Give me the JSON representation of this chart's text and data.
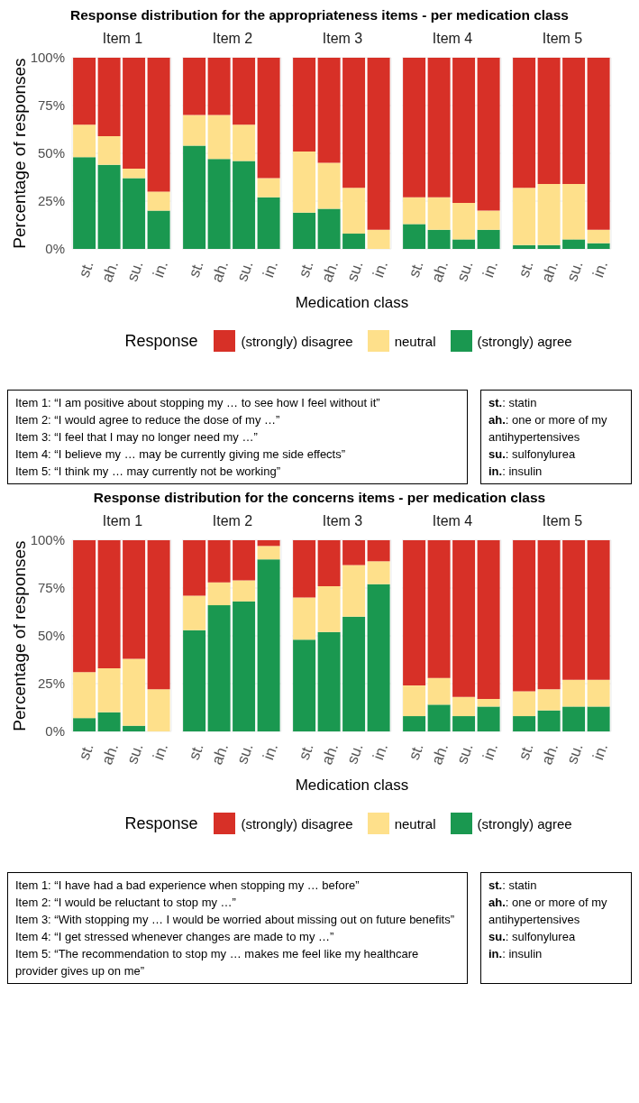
{
  "chart_data": [
    {
      "type": "bar",
      "stacked": true,
      "title": "Response distribution for the appropriateness items - per medication class",
      "subtitle": "Item 1",
      "ylabel": "Percentage of responses",
      "legend": "bottom",
      "legend_title": "Response",
      "categories": [
        "st.",
        "ah.",
        "su.",
        "in."
      ],
      "ylim": [
        0,
        100
      ],
      "yticks": [
        {
          "value": 0,
          "label": "0%"
        },
        {
          "value": 25,
          "label": "25%"
        },
        {
          "value": 50,
          "label": "50%"
        },
        {
          "value": 75,
          "label": "75%"
        },
        {
          "value": 100,
          "label": "100%"
        }
      ],
      "grid": true,
      "series": [
        {
          "name": "(strongly) agree",
          "color": "#1a9850",
          "values": [
            48,
            44,
            37,
            20
          ]
        },
        {
          "name": "neutral",
          "color": "#fee08b",
          "values": [
            17,
            15,
            5,
            10
          ]
        },
        {
          "name": "(strongly) disagree",
          "color": "#d73027",
          "values": [
            35,
            41,
            58,
            70
          ]
        }
      ],
      "annotations": [
        "Item 1: “I am positive about stopping my … to see how I feel without it”",
        "Item 2: “I would agree to reduce the dose of my …”",
        "Item 3: “I feel that I may no longer need my …”",
        "Item 4: “I believe my … may be currently giving me side effects”",
        "Item 5: “I think my … may currently not be working”"
      ]
    },
    {
      "type": "bar",
      "stacked": true,
      "subtitle": "Item 2",
      "categories": [
        "st.",
        "ah.",
        "su.",
        "in."
      ],
      "ylim": [
        0,
        100
      ],
      "yticks": [
        0,
        25,
        50,
        75,
        100
      ],
      "grid": true,
      "tick_labels": "x",
      "series": [
        {
          "color": "#1a9850",
          "values": [
            54,
            47,
            46,
            27
          ]
        },
        {
          "color": "#fee08b",
          "values": [
            16,
            23,
            19,
            10
          ]
        },
        {
          "color": "#d73027",
          "values": [
            30,
            30,
            35,
            63
          ]
        }
      ]
    },
    {
      "type": "bar",
      "stacked": true,
      "subtitle": "Item 3",
      "xlabel": "Medication class",
      "categories": [
        "st.",
        "ah.",
        "su.",
        "in."
      ],
      "ylim": [
        0,
        100
      ],
      "yticks": [
        0,
        25,
        50,
        75,
        100
      ],
      "grid": true,
      "tick_labels": "x",
      "series": [
        {
          "color": "#1a9850",
          "values": [
            19,
            21,
            8,
            0
          ]
        },
        {
          "color": "#fee08b",
          "values": [
            32,
            24,
            24,
            10
          ]
        },
        {
          "color": "#d73027",
          "values": [
            49,
            55,
            68,
            90
          ]
        }
      ]
    },
    {
      "type": "bar",
      "stacked": true,
      "subtitle": "Item 4",
      "categories": [
        "st.",
        "ah.",
        "su.",
        "in."
      ],
      "ylim": [
        0,
        100
      ],
      "yticks": [
        0,
        25,
        50,
        75,
        100
      ],
      "grid": true,
      "tick_labels": "x",
      "series": [
        {
          "color": "#1a9850",
          "values": [
            13,
            10,
            5,
            10
          ]
        },
        {
          "color": "#fee08b",
          "values": [
            14,
            17,
            19,
            10
          ]
        },
        {
          "color": "#d73027",
          "values": [
            73,
            73,
            76,
            80
          ]
        }
      ]
    },
    {
      "type": "bar",
      "stacked": true,
      "subtitle": "Item 5",
      "categories": [
        "st.",
        "ah.",
        "su.",
        "in."
      ],
      "ylim": [
        0,
        100
      ],
      "yticks": [
        0,
        25,
        50,
        75,
        100
      ],
      "grid": true,
      "tick_labels": "x",
      "series": [
        {
          "color": "#1a9850",
          "values": [
            2,
            2,
            5,
            3
          ]
        },
        {
          "color": "#fee08b",
          "values": [
            30,
            32,
            29,
            7
          ]
        },
        {
          "color": "#d73027",
          "values": [
            68,
            66,
            66,
            90
          ]
        }
      ],
      "annotations": [
        "st.: statin",
        "ah.: one or more of my antihypertensives",
        "su.: sulfonylurea",
        "in.: insulin"
      ]
    },
    {
      "type": "bar",
      "stacked": true,
      "title": "Response distribution for the concerns items - per medication class",
      "subtitle": "Item 1",
      "ylabel": "Percentage of responses",
      "legend": "bottom",
      "legend_title": "Response",
      "categories": [
        "st.",
        "ah.",
        "su.",
        "in."
      ],
      "ylim": [
        0,
        100
      ],
      "yticks": [
        {
          "value": 0,
          "label": "0%"
        },
        {
          "value": 25,
          "label": "25%"
        },
        {
          "value": 50,
          "label": "50%"
        },
        {
          "value": 75,
          "label": "75%"
        },
        {
          "value": 100,
          "label": "100%"
        }
      ],
      "grid": true,
      "series": [
        {
          "name": "(strongly) agree",
          "color": "#1a9850",
          "values": [
            7,
            10,
            3,
            0
          ]
        },
        {
          "name": "neutral",
          "color": "#fee08b",
          "values": [
            24,
            23,
            35,
            22
          ]
        },
        {
          "name": "(strongly) disagree",
          "color": "#d73027",
          "values": [
            69,
            67,
            62,
            78
          ]
        }
      ],
      "annotations": [
        "Item 1: “I have had a bad experience when stopping my … before”",
        "Item 2: “I would be reluctant to stop my …”",
        "Item 3: “With stopping my … I would be worried about missing out on future benefits”",
        "Item 4: “I get stressed whenever changes are made to my …”",
        "Item 5: “The recommendation to stop my … makes me feel like my healthcare provider gives up on me”"
      ]
    },
    {
      "type": "bar",
      "stacked": true,
      "subtitle": "Item 2",
      "categories": [
        "st.",
        "ah.",
        "su.",
        "in."
      ],
      "ylim": [
        0,
        100
      ],
      "yticks": [
        0,
        25,
        50,
        75,
        100
      ],
      "grid": true,
      "tick_labels": "x",
      "series": [
        {
          "color": "#1a9850",
          "values": [
            53,
            66,
            68,
            90
          ]
        },
        {
          "color": "#fee08b",
          "values": [
            18,
            12,
            11,
            7
          ]
        },
        {
          "color": "#d73027",
          "values": [
            29,
            22,
            21,
            3
          ]
        }
      ]
    },
    {
      "type": "bar",
      "stacked": true,
      "subtitle": "Item 3",
      "xlabel": "Medication class",
      "categories": [
        "st.",
        "ah.",
        "su.",
        "in."
      ],
      "ylim": [
        0,
        100
      ],
      "yticks": [
        0,
        25,
        50,
        75,
        100
      ],
      "grid": true,
      "tick_labels": "x",
      "series": [
        {
          "color": "#1a9850",
          "values": [
            48,
            52,
            60,
            77
          ]
        },
        {
          "color": "#fee08b",
          "values": [
            22,
            24,
            27,
            12
          ]
        },
        {
          "color": "#d73027",
          "values": [
            30,
            24,
            13,
            11
          ]
        }
      ]
    },
    {
      "type": "bar",
      "stacked": true,
      "subtitle": "Item 4",
      "categories": [
        "st.",
        "ah.",
        "su.",
        "in."
      ],
      "ylim": [
        0,
        100
      ],
      "yticks": [
        0,
        25,
        50,
        75,
        100
      ],
      "grid": true,
      "tick_labels": "x",
      "series": [
        {
          "color": "#1a9850",
          "values": [
            8,
            14,
            8,
            13
          ]
        },
        {
          "color": "#fee08b",
          "values": [
            16,
            14,
            10,
            4
          ]
        },
        {
          "color": "#d73027",
          "values": [
            76,
            72,
            82,
            83
          ]
        }
      ]
    },
    {
      "type": "bar",
      "stacked": true,
      "subtitle": "Item 5",
      "categories": [
        "st.",
        "ah.",
        "su.",
        "in."
      ],
      "ylim": [
        0,
        100
      ],
      "yticks": [
        0,
        25,
        50,
        75,
        100
      ],
      "grid": true,
      "tick_labels": "x",
      "series": [
        {
          "color": "#1a9850",
          "values": [
            8,
            11,
            13,
            13
          ]
        },
        {
          "color": "#fee08b",
          "values": [
            13,
            11,
            14,
            14
          ]
        },
        {
          "color": "#d73027",
          "values": [
            79,
            78,
            73,
            73
          ]
        }
      ],
      "annotations": [
        "st.: statin",
        "ah.: one or more of my antihypertensives",
        "su.: sulfonylurea",
        "in.: insulin"
      ]
    }
  ]
}
